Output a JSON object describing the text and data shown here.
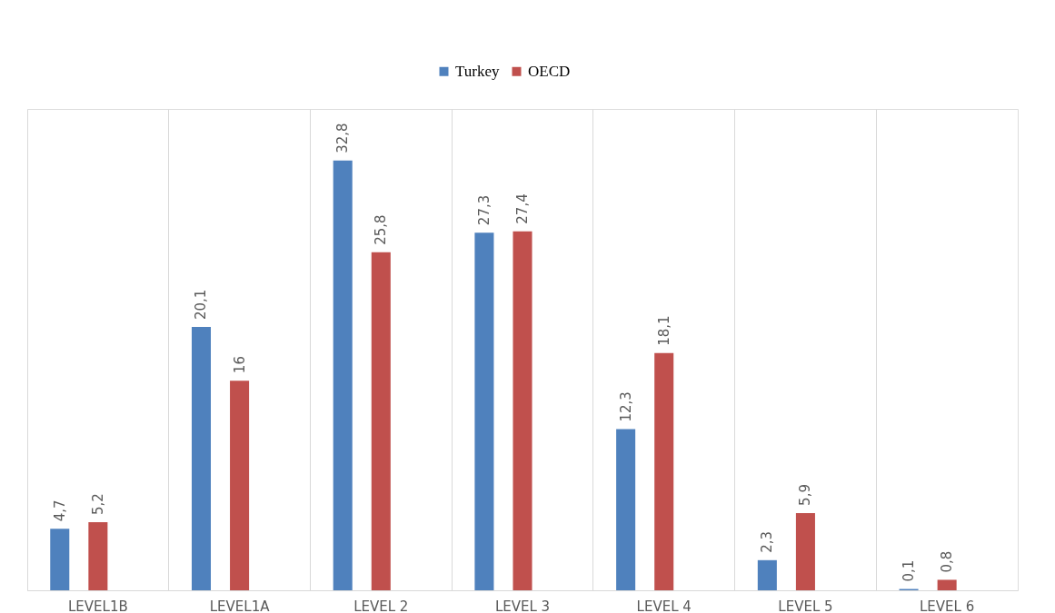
{
  "chart_data": {
    "type": "bar",
    "categories": [
      "LEVEL1B",
      "LEVEL1A",
      "LEVEL 2",
      "LEVEL 3",
      "LEVEL 4",
      "LEVEL 5",
      "LEVEL 6"
    ],
    "series": [
      {
        "name": "Turkey",
        "color": "#4f81bd",
        "values": [
          4.7,
          20.1,
          32.8,
          27.3,
          12.3,
          2.3,
          0.1
        ],
        "value_labels": [
          "4,7",
          "20,1",
          "32,8",
          "27,3",
          "12,3",
          "2,3",
          "0,1"
        ]
      },
      {
        "name": "OECD",
        "color": "#c0504d",
        "values": [
          5.2,
          16,
          25.8,
          27.4,
          18.1,
          5.9,
          0.8
        ],
        "value_labels": [
          "5,2",
          "16",
          "25,8",
          "27,4",
          "18,1",
          "5,9",
          "0,8"
        ]
      }
    ],
    "grid": "x",
    "legend": "top"
  }
}
